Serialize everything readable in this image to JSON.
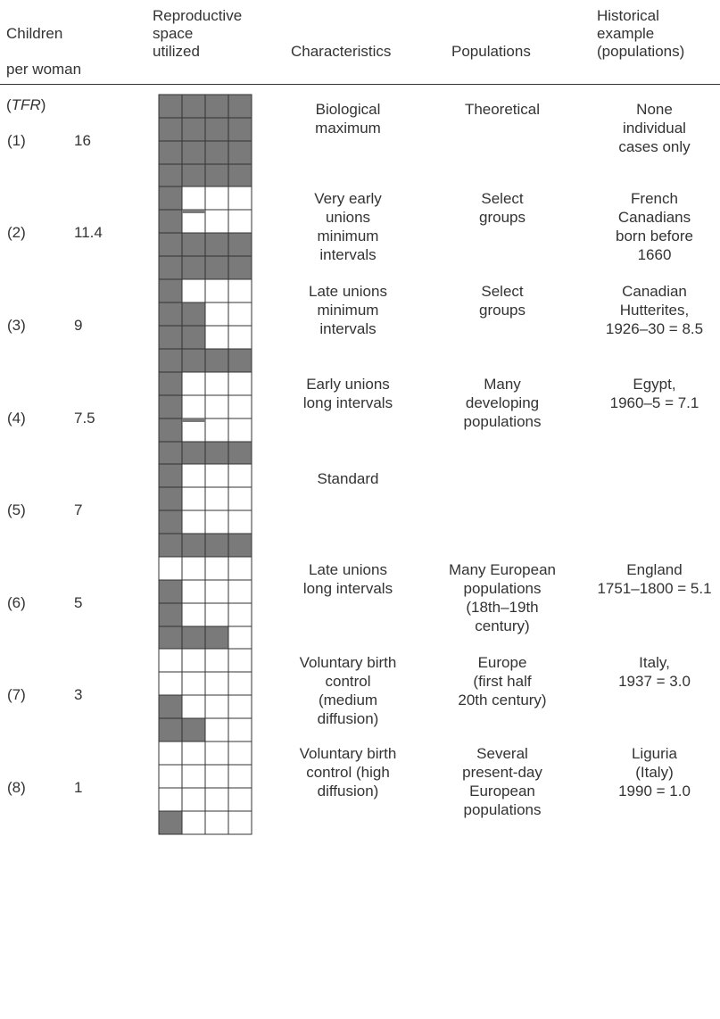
{
  "headers": {
    "children": "Children\nper woman\n(TFR)",
    "children_l1": "Children",
    "children_l2": "per woman",
    "children_l3_open": "(",
    "children_l3_tfr": "TFR",
    "children_l3_close": ")",
    "space": "Reproductive\nspace\nutilized",
    "characteristics": "Characteristics",
    "populations": "Populations",
    "historical": "Historical\nexample\n(populations)"
  },
  "colors": {
    "filled": "#7a7a7a",
    "empty": "#ffffff",
    "line": "#333333"
  },
  "rows": [
    {
      "index": "(1)",
      "tfr": "16",
      "characteristics": "Biological\nmaximum",
      "populations": "Theoretical",
      "historical": "None\nindividual\ncases only",
      "grid_filled": [
        [
          1,
          1,
          1,
          1
        ],
        [
          1,
          1,
          1,
          1
        ],
        [
          1,
          1,
          1,
          1
        ],
        [
          1,
          1,
          1,
          1
        ]
      ],
      "partial_cells": []
    },
    {
      "index": "(2)",
      "tfr": "11.4",
      "characteristics": "Very early\nunions\nminimum\nintervals",
      "populations": "Select\ngroups",
      "historical": "French\nCanadians\nborn before\n1660",
      "grid_filled": [
        [
          1,
          0,
          0,
          0
        ],
        [
          1,
          0,
          0,
          0
        ],
        [
          1,
          1,
          1,
          1
        ],
        [
          1,
          1,
          1,
          1
        ]
      ],
      "partial_cells": [
        {
          "row": 1,
          "col": 1,
          "fraction": 0.15
        }
      ]
    },
    {
      "index": "(3)",
      "tfr": "9",
      "characteristics": "Late unions\nminimum\nintervals",
      "populations": "Select\ngroups",
      "historical": "Canadian\nHutterites,\n1926–30 = 8.5",
      "grid_filled": [
        [
          1,
          0,
          0,
          0
        ],
        [
          1,
          1,
          0,
          0
        ],
        [
          1,
          1,
          0,
          0
        ],
        [
          1,
          1,
          1,
          1
        ]
      ],
      "partial_cells": []
    },
    {
      "index": "(4)",
      "tfr": "7.5",
      "characteristics": "Early unions\nlong intervals",
      "populations": "Many\ndeveloping\npopulations",
      "historical": "Egypt,\n1960–5 = 7.1",
      "grid_filled": [
        [
          1,
          0,
          0,
          0
        ],
        [
          1,
          0,
          0,
          0
        ],
        [
          1,
          0,
          0,
          0
        ],
        [
          1,
          1,
          1,
          1
        ]
      ],
      "partial_cells": [
        {
          "row": 2,
          "col": 1,
          "fraction": 0.15
        }
      ]
    },
    {
      "index": "(5)",
      "tfr": "7",
      "characteristics": "Standard",
      "populations": "",
      "historical": "",
      "grid_filled": [
        [
          1,
          0,
          0,
          0
        ],
        [
          1,
          0,
          0,
          0
        ],
        [
          1,
          0,
          0,
          0
        ],
        [
          1,
          1,
          1,
          1
        ]
      ],
      "partial_cells": []
    },
    {
      "index": "(6)",
      "tfr": "5",
      "characteristics": "Late unions\nlong intervals",
      "populations": "Many European\npopulations\n(18th–19th\ncentury)",
      "historical": "England\n1751–1800 = 5.1",
      "grid_filled": [
        [
          0,
          0,
          0,
          0
        ],
        [
          1,
          0,
          0,
          0
        ],
        [
          1,
          0,
          0,
          0
        ],
        [
          1,
          1,
          1,
          0
        ]
      ],
      "partial_cells": []
    },
    {
      "index": "(7)",
      "tfr": "3",
      "characteristics": "Voluntary birth\ncontrol\n(medium\ndiffusion)",
      "populations": "Europe\n(first half\n20th century)",
      "historical": "Italy,\n1937 = 3.0",
      "grid_filled": [
        [
          0,
          0,
          0,
          0
        ],
        [
          0,
          0,
          0,
          0
        ],
        [
          1,
          0,
          0,
          0
        ],
        [
          1,
          1,
          0,
          0
        ]
      ],
      "partial_cells": []
    },
    {
      "index": "(8)",
      "tfr": "1",
      "characteristics": "Voluntary birth\ncontrol (high\ndiffusion)",
      "populations": "Several\npresent-day\nEuropean\npopulations",
      "historical": "Liguria\n(Italy)\n1990 = 1.0",
      "grid_filled": [
        [
          0,
          0,
          0,
          0
        ],
        [
          0,
          0,
          0,
          0
        ],
        [
          0,
          0,
          0,
          0
        ],
        [
          1,
          0,
          0,
          0
        ]
      ],
      "partial_cells": []
    }
  ]
}
